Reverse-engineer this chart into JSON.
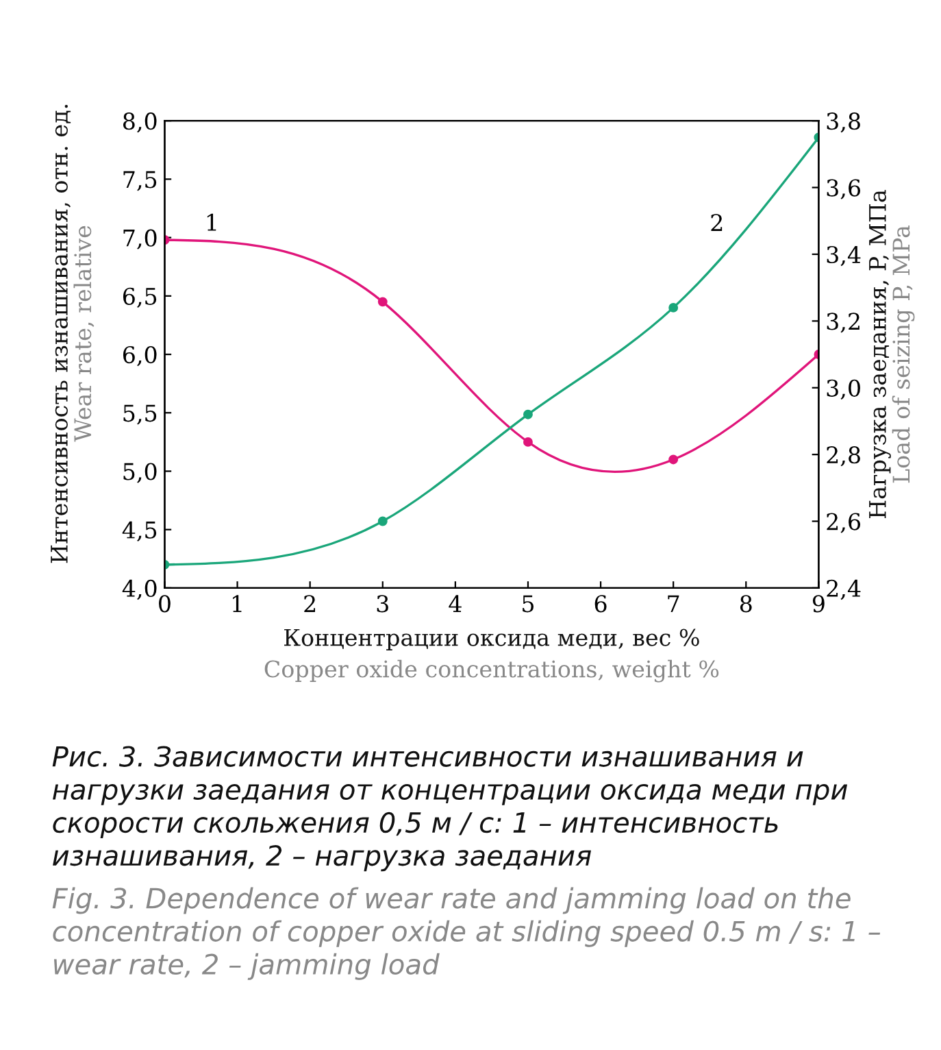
{
  "chart_data": {
    "type": "line",
    "x": [
      0,
      3,
      5,
      7,
      9
    ],
    "series": [
      {
        "name": "1",
        "color": "#e0157a",
        "values": [
          6.98,
          6.45,
          5.25,
          5.1,
          6.0
        ]
      },
      {
        "name": "2",
        "color": "#1aa67a",
        "axis": "y2",
        "values": [
          2.47,
          2.6,
          2.92,
          3.24,
          3.75
        ]
      }
    ],
    "xlim": [
      0,
      9
    ],
    "xticks": [
      0,
      1,
      2,
      3,
      4,
      5,
      6,
      7,
      8,
      9
    ],
    "ylim": [
      4,
      8
    ],
    "yticks": [
      {
        "value": 4,
        "label": "4,0"
      },
      {
        "value": 4.5,
        "label": "4,5"
      },
      {
        "value": 5,
        "label": "5,0"
      },
      {
        "value": 5.5,
        "label": "5,5"
      },
      {
        "value": 6,
        "label": "6,0"
      },
      {
        "value": 6.5,
        "label": "6,5"
      },
      {
        "value": 7,
        "label": "7,0"
      },
      {
        "value": 7.5,
        "label": "7,5"
      },
      {
        "value": 8,
        "label": "8,0"
      }
    ],
    "y2lim": [
      2.4,
      3.8
    ],
    "y2ticks": [
      {
        "value": 2.4,
        "label": "2,4"
      },
      {
        "value": 2.6,
        "label": "2,6"
      },
      {
        "value": 2.8,
        "label": "2,8"
      },
      {
        "value": 3.0,
        "label": "3,0"
      },
      {
        "value": 3.2,
        "label": "3,2"
      },
      {
        "value": 3.4,
        "label": "3,4"
      },
      {
        "value": 3.6,
        "label": "3,6"
      },
      {
        "value": 3.8,
        "label": "3,8"
      }
    ],
    "xlabel": "Концентрации оксида меди, вес %\nCopper oxide concentrations, weight %",
    "ylabel": "Интенсивность изнашивания, отн. ед.\nWear rate, relative",
    "y2label": "Нагрузка заедания, P, МПа\nLoad of seizing P, MPa",
    "annotations": [
      "Рис. 3. Зависимости интенсивности изнашивания и нагрузки заедания от концентрации оксида меди при скорости скольжения 0,5 м / с: 1 – интенсивность изнашивания, 2 – нагрузка заедания",
      "Fig. 3. Dependence of wear rate and jamming load on the concentration of copper oxide at sliding speed 0.5 m / s: 1 – wear rate, 2 – jamming load"
    ],
    "marker": "circle",
    "line_style": "solid",
    "grid": false,
    "legend": false
  }
}
